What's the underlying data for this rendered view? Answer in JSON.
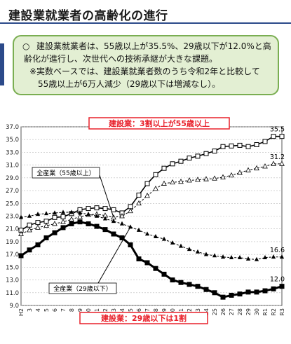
{
  "title": "建設業就業者の高齢化の進行",
  "summary": {
    "bullet": "○",
    "line1": "建設業就業者は、55歳以上が35.5%、29歳以下が12.0%と高",
    "line2": "齢化が進行し、次世代への技術承継が大きな課題。",
    "line3": "※実数ベースでは、建設業就業者数のうち令和2年と比較して",
    "line4": "55歳以上が6万人減少（29歳以下は増減なし）。"
  },
  "chart_data": {
    "type": "line",
    "title": "",
    "x": [
      "H2",
      "3",
      "4",
      "5",
      "6",
      "7",
      "8",
      "9",
      "10",
      "11",
      "12",
      "13",
      "14",
      "15",
      "16",
      "17",
      "18",
      "19",
      "20",
      "21",
      "22",
      "23",
      "24",
      "25",
      "26",
      "27",
      "28",
      "29",
      "30",
      "R1",
      "R2",
      "R3"
    ],
    "y_ticks": [
      "37.0",
      "35.0",
      "33.0",
      "31.0",
      "29.0",
      "27.0",
      "25.0",
      "23.0",
      "21.0",
      "19.0",
      "17.0",
      "15.0",
      "13.0",
      "11.0",
      "9.0"
    ],
    "ylim": [
      9,
      37
    ],
    "grid": true,
    "series": [
      {
        "name": "建設業55歳以上",
        "marker": "square",
        "color": "#000000",
        "values": [
          20.8,
          21.6,
          22.0,
          22.2,
          22.8,
          22.9,
          23.4,
          24.0,
          24.2,
          24.3,
          24.2,
          24.0,
          23.5,
          24.5,
          26.3,
          28.1,
          29.5,
          30.5,
          31.2,
          31.6,
          32.1,
          32.4,
          32.8,
          33.2,
          33.9,
          34.0,
          34.1,
          33.9,
          34.2,
          34.7,
          35.5,
          35.5
        ]
      },
      {
        "name": "全産業55歳以上",
        "marker": "triangle",
        "color": "#000000",
        "values": [
          20.2,
          20.8,
          21.2,
          21.5,
          21.8,
          22.1,
          22.5,
          22.9,
          23.2,
          23.3,
          23.1,
          22.8,
          23.0,
          23.8,
          25.0,
          26.2,
          27.3,
          28.1,
          28.3,
          28.4,
          28.6,
          28.7,
          28.8,
          28.9,
          29.1,
          29.4,
          29.8,
          30.2,
          30.5,
          30.8,
          31.2,
          31.2
        ]
      },
      {
        "name": "全産業29歳以下",
        "marker": "triangle-fill",
        "color": "#000000",
        "values": [
          22.8,
          23.0,
          23.3,
          23.4,
          23.5,
          23.6,
          23.6,
          23.5,
          23.3,
          23.0,
          22.6,
          22.2,
          21.8,
          21.3,
          20.8,
          20.2,
          19.8,
          19.4,
          18.8,
          18.3,
          17.8,
          17.4,
          17.0,
          16.8,
          16.6,
          16.5,
          16.5,
          16.3,
          16.2,
          16.5,
          16.6,
          16.6
        ]
      },
      {
        "name": "建設業29歳以下",
        "marker": "square-fill",
        "color": "#000000",
        "values": [
          16.8,
          17.7,
          18.5,
          19.6,
          20.4,
          21.2,
          21.8,
          22.1,
          21.8,
          21.4,
          20.9,
          20.2,
          19.6,
          18.5,
          16.3,
          15.7,
          14.8,
          13.9,
          13.0,
          12.6,
          12.3,
          12.0,
          11.5,
          11.0,
          10.3,
          10.6,
          10.8,
          11.1,
          11.1,
          11.3,
          11.6,
          12.0
        ]
      }
    ],
    "annotations": {
      "top_banner": "建設業：3割以上が55歳以上",
      "bottom_banner": "建設業：29歳以下は1割",
      "label_all_55": "全産業（55歳以上）",
      "label_all_29": "全産業（29歳以下）",
      "end_const55": "35.5",
      "end_all55": "31.2",
      "end_all29": "16.6",
      "end_const29": "12.0"
    },
    "banner_color": "#e8202a"
  }
}
